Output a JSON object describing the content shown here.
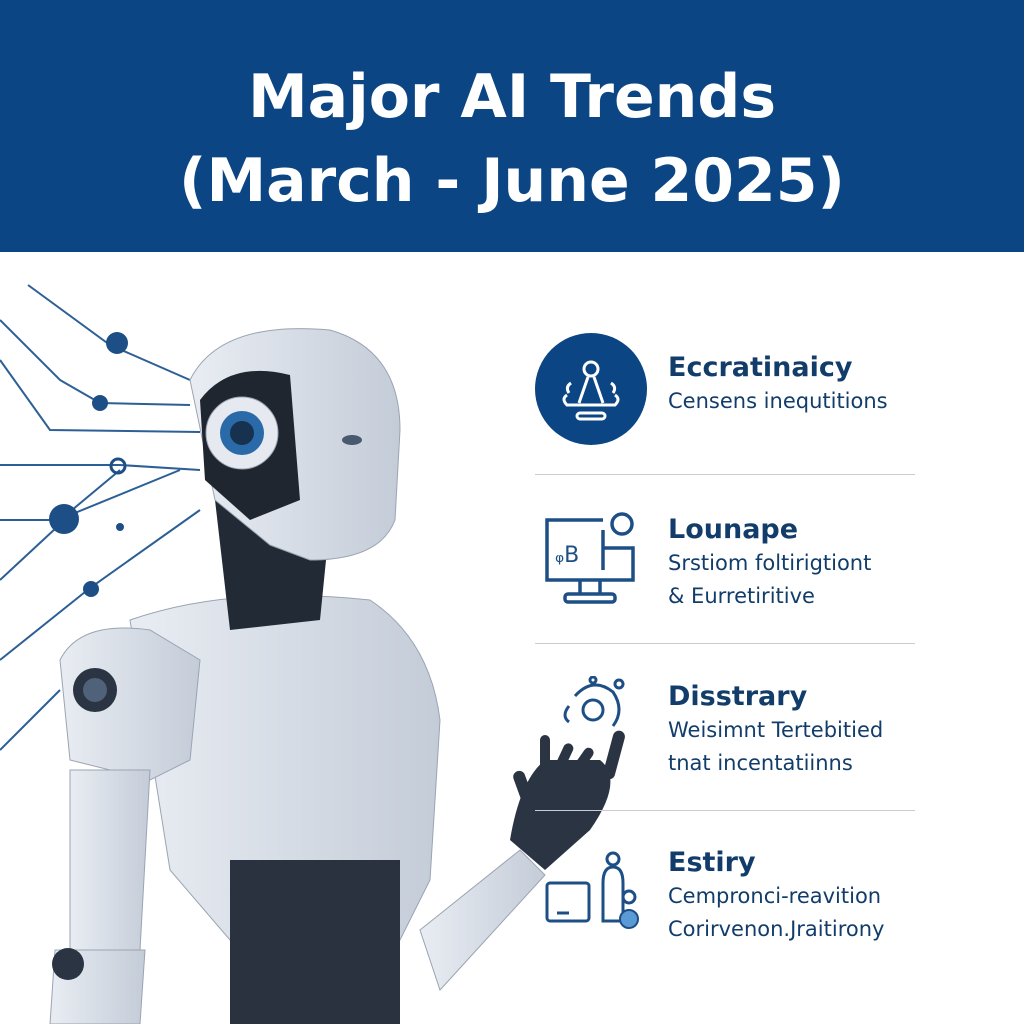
{
  "header": {
    "title_line1": "Major AI Trends",
    "title_line2": "(March - June 2025)"
  },
  "colors": {
    "header_bg": "#0b4584",
    "text": "#123d6b",
    "accent": "#2f7fc1"
  },
  "items": [
    {
      "icon": "group-meeting-icon",
      "title": "Eccratinaicy",
      "lines": [
        "Censens inequtitions"
      ]
    },
    {
      "icon": "computer-monitor-icon",
      "title": "Lounape",
      "lines": [
        "Srstiom foltirigtiont",
        "& Eurretiritive"
      ]
    },
    {
      "icon": "gear-network-icon",
      "title": "Disstrary",
      "lines": [
        "Weisimnt Tertebitied",
        "tnat incentatiinns"
      ]
    },
    {
      "icon": "device-person-icon",
      "title": "Estiry",
      "lines": [
        "Cempronci-reavition",
        "Corirvenon.Jraitirony"
      ]
    }
  ]
}
